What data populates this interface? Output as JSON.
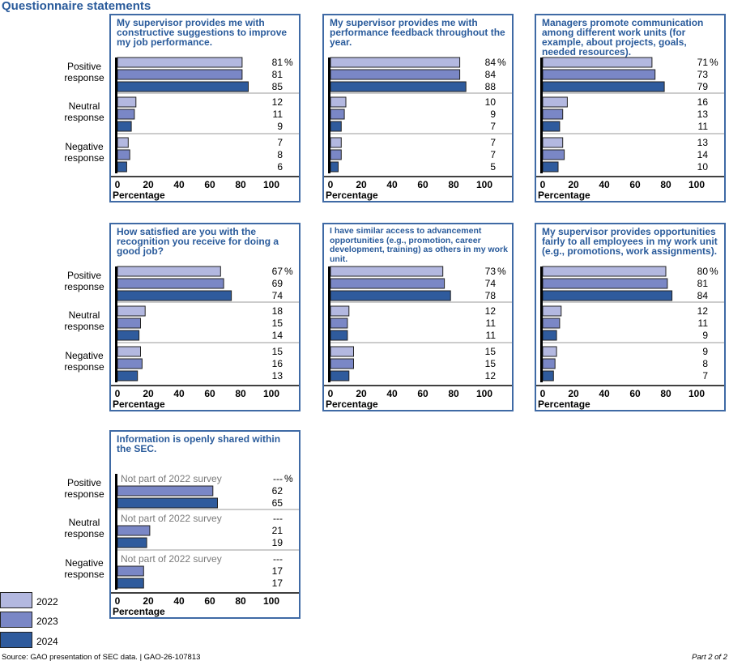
{
  "page": {
    "heading": "Questionnaire statements",
    "source": "Source: GAO presentation of SEC data.  |  GAO-26-107813",
    "part": "Part 2 of 2"
  },
  "legend": {
    "items": [
      {
        "label": "2022",
        "color": "#b3b8e0"
      },
      {
        "label": "2023",
        "color": "#7a87c6"
      },
      {
        "label": "2024",
        "color": "#2f5b9d"
      }
    ]
  },
  "row_labels": [
    {
      "line1": "Positive",
      "line2": "response"
    },
    {
      "line1": "Neutral",
      "line2": "response"
    },
    {
      "line1": "Negative",
      "line2": "response"
    }
  ],
  "chart_data": [
    {
      "type": "bar",
      "title": "My supervisor provides me with constructive suggestions to improve my job performance.",
      "xlabel": "Percentage",
      "xlim": [
        0,
        100
      ],
      "xticks": [
        "0",
        "20",
        "40",
        "60",
        "80",
        "100"
      ],
      "categories": [
        "Positive response",
        "Neutral response",
        "Negative response"
      ],
      "series_names": [
        "2022",
        "2023",
        "2024"
      ],
      "values": [
        [
          81,
          81,
          85
        ],
        [
          12,
          11,
          9
        ],
        [
          7,
          8,
          6
        ]
      ],
      "labels": [
        [
          "81",
          "81",
          "85"
        ],
        [
          "12",
          "11",
          "9"
        ],
        [
          "7",
          "8",
          "6"
        ]
      ],
      "unit": "%"
    },
    {
      "type": "bar",
      "title": "My supervisor provides me with performance feedback throughout the year.",
      "xlabel": "Percentage",
      "xlim": [
        0,
        100
      ],
      "xticks": [
        "0",
        "20",
        "40",
        "60",
        "80",
        "100"
      ],
      "categories": [
        "Positive response",
        "Neutral response",
        "Negative response"
      ],
      "series_names": [
        "2022",
        "2023",
        "2024"
      ],
      "values": [
        [
          84,
          84,
          88
        ],
        [
          10,
          9,
          7
        ],
        [
          7,
          7,
          5
        ]
      ],
      "labels": [
        [
          "84",
          "84",
          "88"
        ],
        [
          "10",
          "9",
          "7"
        ],
        [
          "7",
          "7",
          "5"
        ]
      ],
      "unit": "%"
    },
    {
      "type": "bar",
      "title": "Managers promote communication among different work units (for example, about projects, goals, needed resources).",
      "xlabel": "Percentage",
      "xlim": [
        0,
        100
      ],
      "xticks": [
        "0",
        "20",
        "40",
        "60",
        "80",
        "100"
      ],
      "categories": [
        "Positive response",
        "Neutral response",
        "Negative response"
      ],
      "series_names": [
        "2022",
        "2023",
        "2024"
      ],
      "values": [
        [
          71,
          73,
          79
        ],
        [
          16,
          13,
          11
        ],
        [
          13,
          14,
          10
        ]
      ],
      "labels": [
        [
          "71",
          "73",
          "79"
        ],
        [
          "16",
          "13",
          "11"
        ],
        [
          "13",
          "14",
          "10"
        ]
      ],
      "unit": "%"
    },
    {
      "type": "bar",
      "title": "How satisfied are you with the recognition you receive for doing a good job?",
      "xlabel": "Percentage",
      "xlim": [
        0,
        100
      ],
      "xticks": [
        "0",
        "20",
        "40",
        "60",
        "80",
        "100"
      ],
      "categories": [
        "Positive response",
        "Neutral response",
        "Negative response"
      ],
      "series_names": [
        "2022",
        "2023",
        "2024"
      ],
      "values": [
        [
          67,
          69,
          74
        ],
        [
          18,
          15,
          14
        ],
        [
          15,
          16,
          13
        ]
      ],
      "labels": [
        [
          "67",
          "69",
          "74"
        ],
        [
          "18",
          "15",
          "14"
        ],
        [
          "15",
          "16",
          "13"
        ]
      ],
      "unit": "%"
    },
    {
      "type": "bar",
      "title": "I have similar access to advancement opportunities (e.g., promotion, career development, training) as others in my work unit.",
      "xlabel": "Percentage",
      "xlim": [
        0,
        100
      ],
      "xticks": [
        "0",
        "20",
        "40",
        "60",
        "80",
        "100"
      ],
      "categories": [
        "Positive response",
        "Neutral response",
        "Negative response"
      ],
      "series_names": [
        "2022",
        "2023",
        "2024"
      ],
      "values": [
        [
          73,
          74,
          78
        ],
        [
          12,
          11,
          11
        ],
        [
          15,
          15,
          12
        ]
      ],
      "labels": [
        [
          "73",
          "74",
          "78"
        ],
        [
          "12",
          "11",
          "11"
        ],
        [
          "15",
          "15",
          "12"
        ]
      ],
      "unit": "%"
    },
    {
      "type": "bar",
      "title": "My supervisor provides opportunities fairly to all employees in my work unit (e.g., promotions, work assignments).",
      "xlabel": "Percentage",
      "xlim": [
        0,
        100
      ],
      "xticks": [
        "0",
        "20",
        "40",
        "60",
        "80",
        "100"
      ],
      "categories": [
        "Positive response",
        "Neutral response",
        "Negative response"
      ],
      "series_names": [
        "2022",
        "2023",
        "2024"
      ],
      "values": [
        [
          80,
          81,
          84
        ],
        [
          12,
          11,
          9
        ],
        [
          9,
          8,
          7
        ]
      ],
      "labels": [
        [
          "80",
          "81",
          "84"
        ],
        [
          "12",
          "11",
          "9"
        ],
        [
          "9",
          "8",
          "7"
        ]
      ],
      "unit": "%"
    },
    {
      "type": "bar",
      "title": "Information is openly shared within the SEC.",
      "xlabel": "Percentage",
      "xlim": [
        0,
        100
      ],
      "xticks": [
        "0",
        "20",
        "40",
        "60",
        "80",
        "100"
      ],
      "categories": [
        "Positive response",
        "Neutral response",
        "Negative response"
      ],
      "series_names": [
        "2022",
        "2023",
        "2024"
      ],
      "values": [
        [
          null,
          62,
          65
        ],
        [
          null,
          21,
          19
        ],
        [
          null,
          17,
          17
        ]
      ],
      "labels": [
        [
          "---",
          "62",
          "65"
        ],
        [
          "---",
          "21",
          "19"
        ],
        [
          "---",
          "17",
          "17"
        ]
      ],
      "missing_note": "Not part of 2022 survey",
      "unit": "%"
    }
  ]
}
